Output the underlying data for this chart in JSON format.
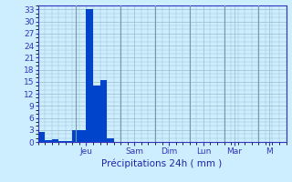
{
  "bar_values": [
    2.5,
    0.4,
    0.6,
    0.3,
    0.2,
    3.0,
    3.0,
    33.0,
    14.0,
    15.5,
    1.0,
    0,
    0,
    0,
    0,
    0,
    0,
    0,
    0,
    0,
    0,
    0,
    0,
    0,
    0,
    0,
    0,
    0,
    0,
    0,
    0,
    0,
    0,
    0,
    0,
    0
  ],
  "bar_color": "#0044cc",
  "background_color": "#cceeff",
  "grid_color": "#99bbcc",
  "axis_color": "#3333bb",
  "xlabel": "Précipitations 24h ( mm )",
  "xlabel_color": "#2222aa",
  "ylabel_ticks": [
    0,
    3,
    6,
    9,
    12,
    15,
    18,
    21,
    24,
    27,
    30,
    33
  ],
  "ymax": 34,
  "day_labels": [
    "Jeu",
    "Sam",
    "Dim",
    "Lun",
    "Mar",
    "M"
  ],
  "day_tick_x": [
    7.0,
    14.0,
    19.0,
    24.0,
    28.5,
    33.5
  ],
  "day_sep_x": [
    5.5,
    12.0,
    17.0,
    22.0,
    27.0,
    32.0
  ],
  "total_bars": 36,
  "xlabel_fontsize": 7.5,
  "tick_fontsize": 6.5
}
